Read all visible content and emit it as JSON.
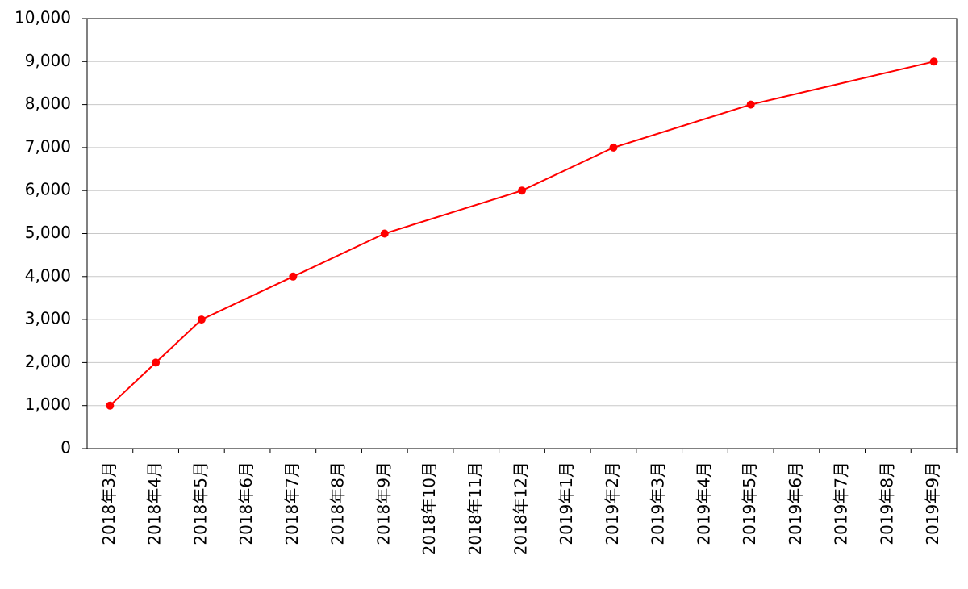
{
  "chart_data": {
    "type": "line",
    "categories": [
      "2018年3月",
      "2018年4月",
      "2018年5月",
      "2018年6月",
      "2018年7月",
      "2018年8月",
      "2018年9月",
      "2018年10月",
      "2018年11月",
      "2018年12月",
      "2019年1月",
      "2019年2月",
      "2019年3月",
      "2019年4月",
      "2019年5月",
      "2019年6月",
      "2019年7月",
      "2019年8月",
      "2019年9月"
    ],
    "series": [
      {
        "color": "#ff0000",
        "x": [
          "2018年3月",
          "2018年4月",
          "2018年5月",
          "2018年7月",
          "2018年9月",
          "2018年12月",
          "2019年2月",
          "2019年5月",
          "2019年9月"
        ],
        "values": [
          1000,
          2000,
          3000,
          4000,
          5000,
          6000,
          7000,
          8000,
          9000
        ]
      }
    ],
    "ylim": [
      0,
      10000
    ],
    "yticks": [
      0,
      {
        "value": 1000,
        "label": "1,000"
      },
      {
        "value": 2000,
        "label": "2,000"
      },
      {
        "value": 3000,
        "label": "3,000"
      },
      {
        "value": 4000,
        "label": "4,000"
      },
      {
        "value": 5000,
        "label": "5,000"
      },
      {
        "value": 6000,
        "label": "6,000"
      },
      {
        "value": 7000,
        "label": "7,000"
      },
      {
        "value": 8000,
        "label": "8,000"
      },
      {
        "value": 9000,
        "label": "9,000"
      },
      {
        "value": 10000,
        "label": "10,000"
      }
    ],
    "grid": true
  }
}
